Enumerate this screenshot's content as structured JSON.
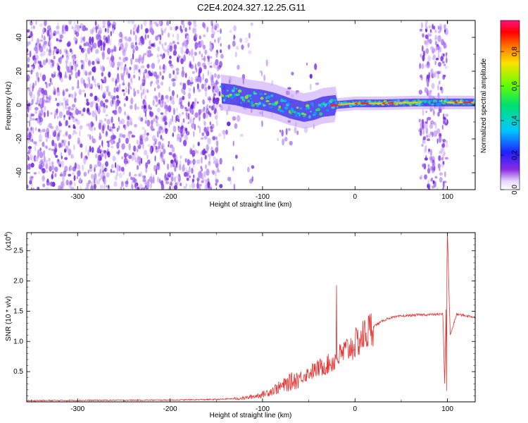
{
  "title": "C2E4.2024.327.12.25.G11",
  "chart_data": [
    {
      "type": "heatmap",
      "xlabel": "Height of straight line (km)",
      "ylabel": "Frequency (Hz)",
      "xlim": [
        -355,
        130
      ],
      "ylim": [
        -50,
        50
      ],
      "xticks": [
        "-300",
        "-200",
        "-100",
        "0",
        "100"
      ],
      "yticks": [
        "40",
        "20",
        "0",
        "-20",
        "-40"
      ],
      "colorbar": {
        "label": "Normalized spectral amplitude",
        "range": [
          0,
          0.98
        ],
        "ticks": [
          "0.0",
          "0.2",
          "0.4",
          "0.6",
          "0.8"
        ]
      },
      "regions": [
        {
          "kind": "noise",
          "x": [
            -355,
            -145
          ],
          "f": [
            -50,
            50
          ]
        },
        {
          "kind": "signal",
          "x": [
            -145,
            67
          ]
        },
        {
          "kind": "noise",
          "x": [
            70,
            100
          ],
          "f": [
            -50,
            50
          ]
        },
        {
          "kind": "signal",
          "x": [
            100,
            130
          ]
        }
      ],
      "signal_centerline": [
        {
          "x": -145,
          "f": 7
        },
        {
          "x": -130,
          "f": 6
        },
        {
          "x": -115,
          "f": 4
        },
        {
          "x": -100,
          "f": 3
        },
        {
          "x": -85,
          "f": 1
        },
        {
          "x": -70,
          "f": -2
        },
        {
          "x": -55,
          "f": -4
        },
        {
          "x": -45,
          "f": -3
        },
        {
          "x": -35,
          "f": -1
        },
        {
          "x": -20,
          "f": 0
        },
        {
          "x": 0,
          "f": 1
        },
        {
          "x": 30,
          "f": 1
        },
        {
          "x": 65,
          "f": 1.5
        },
        {
          "x": 105,
          "f": 1.5
        },
        {
          "x": 130,
          "f": 1.5
        }
      ]
    },
    {
      "type": "line",
      "xlabel": "Height of straight line (km)",
      "ylabel": "SNR (10 * v/v)",
      "yscale_label": "(x10",
      "yscale_exp": "4",
      "yscale_close": ")",
      "xlim": [
        -355,
        130
      ],
      "ylim": [
        0,
        2.8
      ],
      "xticks": [
        "-300",
        "-200",
        "-100",
        "0",
        "100"
      ],
      "yticks": [
        "0.5",
        "1.0",
        "1.5",
        "2.0",
        "2.5"
      ],
      "series": [
        {
          "color": "#e8302e",
          "envelope": [
            {
              "x": -355,
              "y": 0.02
            },
            {
              "x": -200,
              "y": 0.03
            },
            {
              "x": -150,
              "y": 0.04
            },
            {
              "x": -120,
              "y": 0.06
            },
            {
              "x": -100,
              "y": 0.12
            },
            {
              "x": -80,
              "y": 0.25
            },
            {
              "x": -60,
              "y": 0.4
            },
            {
              "x": -40,
              "y": 0.55
            },
            {
              "x": -25,
              "y": 0.65
            },
            {
              "x": -10,
              "y": 0.85
            },
            {
              "x": 0,
              "y": 0.95
            },
            {
              "x": 10,
              "y": 1.1
            },
            {
              "x": 20,
              "y": 1.25
            },
            {
              "x": 35,
              "y": 1.38
            },
            {
              "x": 50,
              "y": 1.42
            },
            {
              "x": 70,
              "y": 1.44
            },
            {
              "x": 95,
              "y": 1.45
            },
            {
              "x": 97,
              "y": 0.3
            },
            {
              "x": 100,
              "y": 2.75
            },
            {
              "x": 103,
              "y": 1.1
            },
            {
              "x": 110,
              "y": 1.45
            },
            {
              "x": 130,
              "y": 1.4
            }
          ],
          "peaks": [
            {
              "x": -20,
              "y": 1.93
            },
            {
              "x": 99,
              "y": 0.18
            },
            {
              "x": 100,
              "y": 2.8
            }
          ]
        }
      ]
    }
  ]
}
